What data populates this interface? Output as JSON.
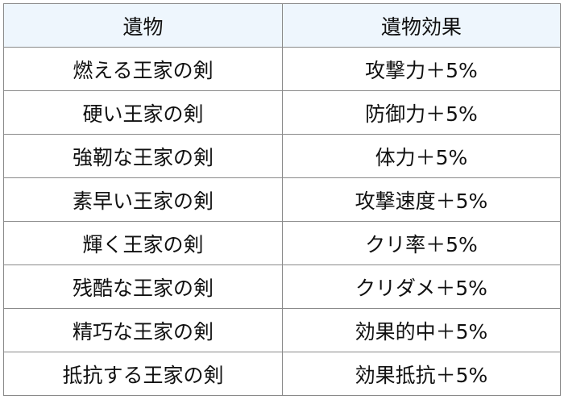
{
  "table": {
    "headers": [
      "遺物",
      "遺物効果"
    ],
    "rows": [
      [
        "燃える王家の剣",
        "攻撃力＋5%"
      ],
      [
        "硬い王家の剣",
        "防御力＋5%"
      ],
      [
        "強靭な王家の剣",
        "体力＋5%"
      ],
      [
        "素早い王家の剣",
        "攻撃速度＋5%"
      ],
      [
        "輝く王家の剣",
        "クリ率＋5%"
      ],
      [
        "残酷な王家の剣",
        "クリダメ＋5%"
      ],
      [
        "精巧な王家の剣",
        "効果的中＋5%"
      ],
      [
        "抵抗する王家の剣",
        "効果抵抗＋5%"
      ]
    ]
  },
  "colors": {
    "header_bg": "#eef6fd",
    "border": "#8a8a8a"
  }
}
